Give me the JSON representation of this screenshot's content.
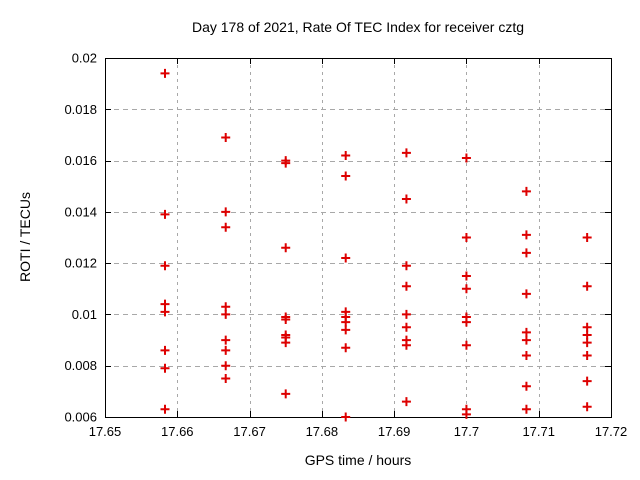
{
  "chart_data": {
    "type": "scatter",
    "title": "Day 178 of 2021, Rate Of TEC Index for receiver cztg",
    "xlabel": "GPS time / hours",
    "ylabel": "ROTI / TECUs",
    "xlim": [
      17.65,
      17.72
    ],
    "ylim": [
      0.006,
      0.02
    ],
    "xtick_values": [
      17.65,
      17.66,
      17.67,
      17.68,
      17.69,
      17.7,
      17.71,
      17.72
    ],
    "xtick_labels": [
      "17.65",
      "17.66",
      "17.67",
      "17.68",
      "17.69",
      "17.7",
      "17.71",
      "17.72"
    ],
    "ytick_values": [
      0.006,
      0.008,
      0.01,
      0.012,
      0.014,
      0.016,
      0.018,
      0.02
    ],
    "ytick_labels": [
      "0.006",
      "0.008",
      "0.01",
      "0.012",
      "0.014",
      "0.016",
      "0.018",
      "0.02"
    ],
    "grid": true,
    "legend_position": "none",
    "marker": {
      "shape": "plus",
      "color": "#dd0000",
      "size": 9
    },
    "frame_color": "#000000",
    "grid_color": "#a8a8a8",
    "background_color": "#ffffff",
    "points": [
      [
        17.6583,
        0.0194
      ],
      [
        17.6583,
        0.0139
      ],
      [
        17.6583,
        0.0119
      ],
      [
        17.6583,
        0.0104
      ],
      [
        17.6583,
        0.0101
      ],
      [
        17.6583,
        0.0086
      ],
      [
        17.6583,
        0.0079
      ],
      [
        17.6583,
        0.0063
      ],
      [
        17.6667,
        0.0169
      ],
      [
        17.6667,
        0.014
      ],
      [
        17.6667,
        0.0134
      ],
      [
        17.6667,
        0.0103
      ],
      [
        17.6667,
        0.01
      ],
      [
        17.6667,
        0.009
      ],
      [
        17.6667,
        0.0086
      ],
      [
        17.6667,
        0.008
      ],
      [
        17.6667,
        0.0075
      ],
      [
        17.675,
        0.016
      ],
      [
        17.675,
        0.0159
      ],
      [
        17.675,
        0.0126
      ],
      [
        17.675,
        0.0099
      ],
      [
        17.675,
        0.0098
      ],
      [
        17.675,
        0.0092
      ],
      [
        17.675,
        0.0091
      ],
      [
        17.675,
        0.0089
      ],
      [
        17.675,
        0.0069
      ],
      [
        17.6833,
        0.0162
      ],
      [
        17.6833,
        0.0154
      ],
      [
        17.6833,
        0.0122
      ],
      [
        17.6833,
        0.0101
      ],
      [
        17.6833,
        0.0099
      ],
      [
        17.6833,
        0.0097
      ],
      [
        17.6833,
        0.0094
      ],
      [
        17.6833,
        0.0087
      ],
      [
        17.6833,
        0.006
      ],
      [
        17.6917,
        0.0163
      ],
      [
        17.6917,
        0.0145
      ],
      [
        17.6917,
        0.0119
      ],
      [
        17.6917,
        0.0111
      ],
      [
        17.6917,
        0.01
      ],
      [
        17.6917,
        0.0095
      ],
      [
        17.6917,
        0.009
      ],
      [
        17.6917,
        0.0088
      ],
      [
        17.6917,
        0.0066
      ],
      [
        17.7,
        0.0161
      ],
      [
        17.7,
        0.013
      ],
      [
        17.7,
        0.0115
      ],
      [
        17.7,
        0.011
      ],
      [
        17.7,
        0.0099
      ],
      [
        17.7,
        0.0097
      ],
      [
        17.7,
        0.0088
      ],
      [
        17.7,
        0.0063
      ],
      [
        17.7,
        0.0061
      ],
      [
        17.7083,
        0.0148
      ],
      [
        17.7083,
        0.0131
      ],
      [
        17.7083,
        0.0124
      ],
      [
        17.7083,
        0.0108
      ],
      [
        17.7083,
        0.0093
      ],
      [
        17.7083,
        0.009
      ],
      [
        17.7083,
        0.0084
      ],
      [
        17.7083,
        0.0072
      ],
      [
        17.7083,
        0.0063
      ],
      [
        17.7167,
        0.013
      ],
      [
        17.7167,
        0.0111
      ],
      [
        17.7167,
        0.0095
      ],
      [
        17.7167,
        0.0092
      ],
      [
        17.7167,
        0.0089
      ],
      [
        17.7167,
        0.0084
      ],
      [
        17.7167,
        0.0074
      ],
      [
        17.7167,
        0.0064
      ]
    ]
  }
}
